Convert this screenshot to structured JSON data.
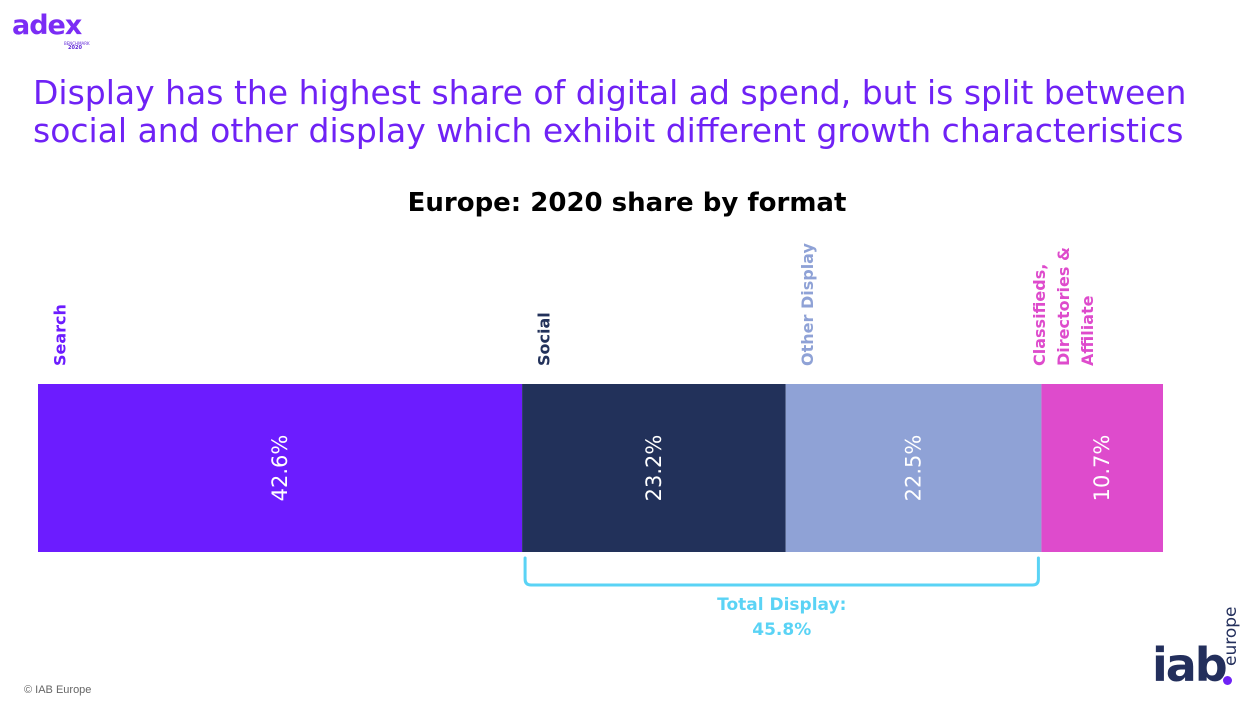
{
  "branding": {
    "adex_logo": "adex",
    "adex_logo_sub": "BENCHMARK",
    "adex_logo_year": "2020",
    "iab_logo": "iab",
    "iab_logo_side": "europe",
    "copyright": "© IAB Europe"
  },
  "slide": {
    "headline_line1": "Display has the highest share of digital ad spend, but is split between",
    "headline_line2": "social and other display which exhibit different growth characteristics"
  },
  "chart_data": {
    "type": "bar",
    "orientation": "horizontal-stacked-100",
    "title": "Europe: 2020 share by format",
    "unit": "%",
    "series": [
      {
        "name": "Search",
        "value": 42.6,
        "label": "42.6%",
        "color": "#6c1cff",
        "name_color": "#6c1cff",
        "name_lines": [
          "Search"
        ]
      },
      {
        "name": "Social",
        "value": 23.2,
        "label": "23.2%",
        "color": "#22315a",
        "name_color": "#22315a",
        "name_lines": [
          "Social"
        ]
      },
      {
        "name": "Other Display",
        "value": 22.5,
        "label": "22.5%",
        "color": "#8fa2d6",
        "name_color": "#8fa2d6",
        "name_lines": [
          "Other Display"
        ]
      },
      {
        "name": "Classifieds, Directories & Affiliate",
        "value": 10.7,
        "label": "10.7%",
        "color": "#de4bcc",
        "name_color": "#de4bcc",
        "name_lines": [
          "Classifieds,",
          "Directories &",
          "Affiliate"
        ]
      }
    ],
    "group_bracket": {
      "spans": [
        "Social",
        "Other Display"
      ],
      "label_line1": "Total Display:",
      "label_line2": "45.8%",
      "value": 45.8,
      "color": "#5ad3f5"
    }
  }
}
